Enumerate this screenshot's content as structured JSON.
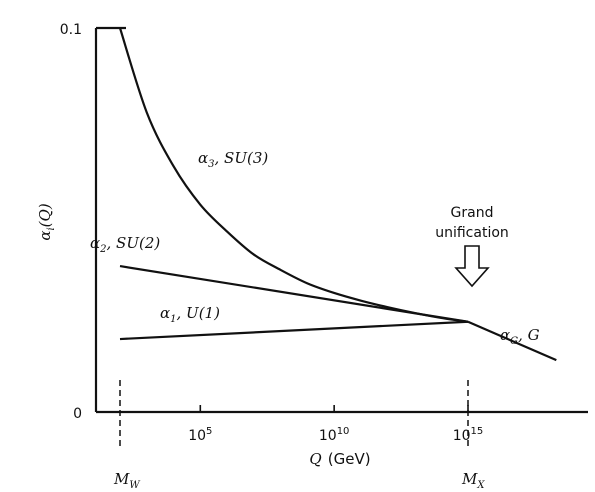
{
  "chart_data": {
    "type": "line",
    "ylabel_html": "α",
    "ylabel_sub": "i",
    "ylabel_tail": "(Q)",
    "xlabel_q": "Q",
    "xlabel_unit": "(GeV)",
    "y_ticks": [
      {
        "value": 0,
        "label": "0"
      },
      {
        "value": 0.1,
        "label": "0.1"
      }
    ],
    "x_ticks": [
      {
        "exp": 5,
        "base": "10",
        "sup": "5"
      },
      {
        "exp": 10,
        "base": "10",
        "sup": "10"
      },
      {
        "exp": 15,
        "base": "10",
        "sup": "15"
      }
    ],
    "xlim_log10": [
      0,
      20
    ],
    "ylim": [
      0,
      0.1
    ],
    "markers": [
      {
        "name": "M",
        "sub": "W",
        "log10_q": 2
      },
      {
        "name": "M",
        "sub": "X",
        "log10_q": 15
      }
    ],
    "series": [
      {
        "name": "α3, SU(3)",
        "label_greek": "α",
        "label_sub": "3",
        "label_group": ", SU(3)",
        "x_log10": [
          2,
          3,
          4,
          5,
          6,
          7,
          8,
          9,
          10,
          11,
          12,
          13,
          14,
          15
        ],
        "values": [
          0.1,
          0.078,
          0.064,
          0.054,
          0.047,
          0.041,
          0.037,
          0.0335,
          0.031,
          0.029,
          0.0273,
          0.0258,
          0.0245,
          0.0235
        ]
      },
      {
        "name": "α2, SU(2)",
        "label_greek": "α",
        "label_sub": "2",
        "label_group": ", SU(2)",
        "x_log10": [
          2,
          15
        ],
        "values": [
          0.038,
          0.0235
        ]
      },
      {
        "name": "α1, U(1)",
        "label_greek": "α",
        "label_sub": "1",
        "label_group": ", U(1)",
        "x_log10": [
          2,
          15
        ],
        "values": [
          0.019,
          0.0235
        ]
      },
      {
        "name": "αG, G",
        "label_greek": "α",
        "label_sub": "G",
        "label_group": ", G",
        "x_log10": [
          15,
          18.3
        ],
        "values": [
          0.0235,
          0.0135
        ]
      }
    ],
    "annotation": {
      "line1": "Grand",
      "line2": "unification"
    }
  }
}
